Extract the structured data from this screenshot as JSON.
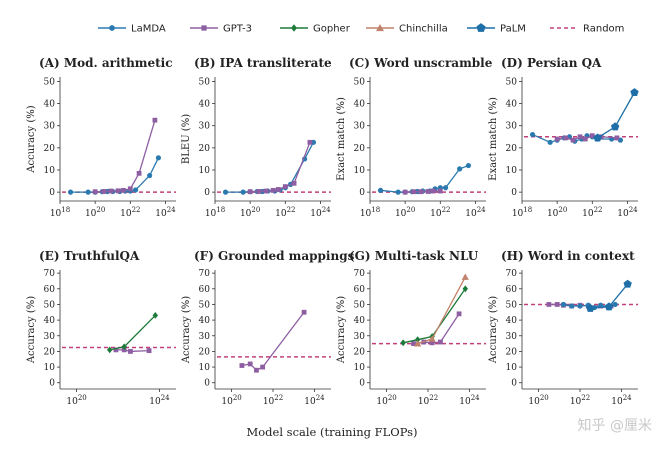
{
  "legend": [
    {
      "name": "LaMDA",
      "color": "#2a7ab0",
      "marker": "circle"
    },
    {
      "name": "GPT-3",
      "color": "#8e5ea2",
      "marker": "square"
    },
    {
      "name": "Gopher",
      "color": "#1d7a3a",
      "marker": "diamond"
    },
    {
      "name": "Chinchilla",
      "color": "#c0826a",
      "marker": "triangle"
    },
    {
      "name": "PaLM",
      "color": "#1e6fa8",
      "marker": "pentagon"
    },
    {
      "name": "Random",
      "color": "#c2407a",
      "marker": "dashed"
    }
  ],
  "x_axis_caption": "Model scale (training FLOPs)",
  "watermark": "知乎 @厘米",
  "chart_data": [
    {
      "type": "line",
      "title": "(A) Mod. arithmetic",
      "ylabel": "Accuracy (%)",
      "xscale": "log",
      "xlim": [
        18,
        24.6
      ],
      "ylim": [
        -4,
        52
      ],
      "xticks": [
        18,
        20,
        22,
        24
      ],
      "xtick_labels": [
        "10^18",
        "10^20",
        "10^22",
        "10^24"
      ],
      "yticks": [
        0,
        10,
        20,
        30,
        40,
        50
      ],
      "random": 0,
      "series": [
        {
          "name": "LaMDA",
          "x": [
            18.6,
            19.6,
            20.0,
            20.4,
            20.7,
            21.0,
            21.4,
            21.7,
            22.0,
            22.3,
            23.1,
            23.6
          ],
          "y": [
            0,
            0,
            0,
            0.2,
            0.3,
            0.3,
            0.3,
            0.5,
            0.5,
            1,
            7.5,
            15.5
          ]
        },
        {
          "name": "GPT-3",
          "x": [
            20.0,
            20.5,
            20.9,
            21.3,
            21.6,
            22.0,
            22.5,
            23.4
          ],
          "y": [
            0.2,
            0.3,
            0.5,
            0.6,
            0.8,
            1.5,
            8.5,
            32.5
          ]
        }
      ]
    },
    {
      "type": "line",
      "title": "(B) IPA transliterate",
      "ylabel": "BLEU (%)",
      "xscale": "log",
      "xlim": [
        18,
        24.6
      ],
      "ylim": [
        -4,
        52
      ],
      "xticks": [
        18,
        20,
        22,
        24
      ],
      "xtick_labels": [
        "10^18",
        "10^20",
        "10^22",
        "10^24"
      ],
      "yticks": [
        0,
        10,
        20,
        30,
        40,
        50
      ],
      "random": 0,
      "series": [
        {
          "name": "LaMDA",
          "x": [
            18.6,
            19.6,
            20.0,
            20.4,
            20.7,
            21.0,
            21.4,
            21.7,
            22.0,
            22.3,
            23.1,
            23.6
          ],
          "y": [
            0,
            0,
            0.2,
            0.3,
            0.3,
            0.5,
            0.5,
            1,
            2,
            3.5,
            15,
            22.5
          ]
        },
        {
          "name": "GPT-3",
          "x": [
            20.0,
            20.5,
            20.9,
            21.3,
            21.6,
            22.0,
            22.5,
            23.4
          ],
          "y": [
            0.2,
            0.3,
            0.5,
            0.8,
            1.2,
            2.5,
            4,
            22.5
          ]
        }
      ]
    },
    {
      "type": "line",
      "title": "(C) Word unscramble",
      "ylabel": "Exact match (%)",
      "xscale": "log",
      "xlim": [
        18,
        24.6
      ],
      "ylim": [
        -4,
        52
      ],
      "xticks": [
        18,
        20,
        22,
        24
      ],
      "xtick_labels": [
        "10^18",
        "10^20",
        "10^22",
        "10^24"
      ],
      "yticks": [
        0,
        10,
        20,
        30,
        40,
        50
      ],
      "random": 0,
      "series": [
        {
          "name": "LaMDA",
          "x": [
            18.6,
            19.6,
            20.0,
            20.4,
            20.7,
            21.0,
            21.4,
            21.7,
            22.0,
            22.3,
            23.1,
            23.6
          ],
          "y": [
            0.8,
            0,
            0,
            0.2,
            0.3,
            0.5,
            0.5,
            1.5,
            2,
            2,
            10.5,
            12
          ]
        },
        {
          "name": "GPT-3",
          "x": [
            20.0,
            20.5,
            20.9,
            21.3,
            21.6,
            22.0
          ],
          "y": [
            0,
            0.2,
            0.2,
            0.3,
            0.5,
            0.5
          ]
        }
      ]
    },
    {
      "type": "line",
      "title": "(D) Persian QA",
      "ylabel": "Exact match (%)",
      "xscale": "log",
      "xlim": [
        18,
        24.6
      ],
      "ylim": [
        -4,
        52
      ],
      "xticks": [
        18,
        20,
        22,
        24
      ],
      "xtick_labels": [
        "10^18",
        "10^20",
        "10^22",
        "10^24"
      ],
      "yticks": [
        0,
        10,
        20,
        30,
        40,
        50
      ],
      "random": 25,
      "series": [
        {
          "name": "LaMDA",
          "x": [
            18.6,
            19.6,
            20.0,
            20.4,
            20.7,
            21.0,
            21.4,
            21.7,
            22.0,
            22.3,
            23.1,
            23.6
          ],
          "y": [
            26,
            22.5,
            23.5,
            24.5,
            25,
            23,
            24,
            25.5,
            25,
            24,
            24,
            23.5
          ]
        },
        {
          "name": "GPT-3",
          "x": [
            20.0,
            20.5,
            20.9,
            21.3,
            21.6,
            22.0,
            22.5,
            23.4
          ],
          "y": [
            24,
            24.5,
            23.5,
            25,
            24,
            25.5,
            25,
            24.5
          ]
        },
        {
          "name": "PaLM",
          "x": [
            22.3,
            23.3,
            24.4
          ],
          "y": [
            24.5,
            29.5,
            45
          ]
        }
      ]
    },
    {
      "type": "line",
      "title": "(E) TruthfulQA",
      "ylabel": "Accuracy (%)",
      "xscale": "log",
      "xlim": [
        19.2,
        24.8
      ],
      "ylim": [
        -4,
        72
      ],
      "xticks": [
        20,
        24
      ],
      "xtick_labels": [
        "10^20",
        "10^24"
      ],
      "yticks": [
        0,
        10,
        20,
        30,
        40,
        50,
        60,
        70
      ],
      "random": 22.5,
      "series": [
        {
          "name": "GPT-3",
          "x": [
            21.9,
            22.3,
            22.6,
            23.5
          ],
          "y": [
            21,
            21,
            20,
            20.5
          ]
        },
        {
          "name": "Gopher",
          "x": [
            21.6,
            22.3,
            23.8
          ],
          "y": [
            21,
            23,
            43
          ]
        }
      ]
    },
    {
      "type": "line",
      "title": "(F) Grounded mappings",
      "ylabel": "Accuracy (%)",
      "xscale": "log",
      "xlim": [
        19.2,
        24.8
      ],
      "ylim": [
        -4,
        72
      ],
      "xticks": [
        20,
        22,
        24
      ],
      "xtick_labels": [
        "10^20",
        "10^22",
        "10^24"
      ],
      "yticks": [
        0,
        10,
        20,
        30,
        40,
        50,
        60,
        70
      ],
      "random": 16.5,
      "series": [
        {
          "name": "GPT-3",
          "x": [
            20.5,
            20.9,
            21.2,
            21.5,
            23.5
          ],
          "y": [
            11,
            12,
            8,
            10,
            45
          ]
        }
      ]
    },
    {
      "type": "line",
      "title": "(G) Multi-task NLU",
      "ylabel": "Accuracy (%)",
      "xscale": "log",
      "xlim": [
        19.2,
        24.8
      ],
      "ylim": [
        -4,
        72
      ],
      "xticks": [
        20,
        22,
        24
      ],
      "xtick_labels": [
        "10^20",
        "10^22",
        "10^24"
      ],
      "yticks": [
        0,
        10,
        20,
        30,
        40,
        50,
        60,
        70
      ],
      "random": 25,
      "series": [
        {
          "name": "GPT-3",
          "x": [
            21.3,
            21.8,
            22.2,
            22.6,
            23.5
          ],
          "y": [
            25,
            26,
            25.5,
            26,
            44
          ]
        },
        {
          "name": "Gopher",
          "x": [
            20.8,
            21.5,
            22.2,
            23.8
          ],
          "y": [
            25.5,
            27.5,
            29.5,
            60
          ]
        },
        {
          "name": "Chinchilla",
          "x": [
            21.5,
            22.2,
            23.8
          ],
          "y": [
            25,
            28,
            67.5
          ]
        }
      ]
    },
    {
      "type": "line",
      "title": "(H) Word in context",
      "ylabel": "Accuracy (%)",
      "xscale": "log",
      "xlim": [
        19.2,
        24.8
      ],
      "ylim": [
        -4,
        72
      ],
      "xticks": [
        20,
        22,
        24
      ],
      "xtick_labels": [
        "10^20",
        "10^22",
        "10^24"
      ],
      "yticks": [
        0,
        10,
        20,
        30,
        40,
        50,
        60,
        70
      ],
      "random": 50,
      "series": [
        {
          "name": "GPT-3",
          "x": [
            20.5,
            20.9,
            21.2,
            21.6,
            22.0,
            22.4,
            23.0,
            23.5
          ],
          "y": [
            50,
            50,
            49.5,
            49,
            49.5,
            49,
            49,
            49
          ]
        },
        {
          "name": "LaMDA",
          "x": [
            21.2,
            21.6,
            22.0,
            22.4,
            22.7,
            23.0,
            23.4,
            23.7
          ],
          "y": [
            50,
            49,
            49,
            49.5,
            48,
            49.5,
            48,
            50
          ]
        },
        {
          "name": "PaLM",
          "x": [
            22.5,
            23.4,
            24.3
          ],
          "y": [
            47.5,
            48.5,
            63
          ]
        }
      ]
    }
  ]
}
